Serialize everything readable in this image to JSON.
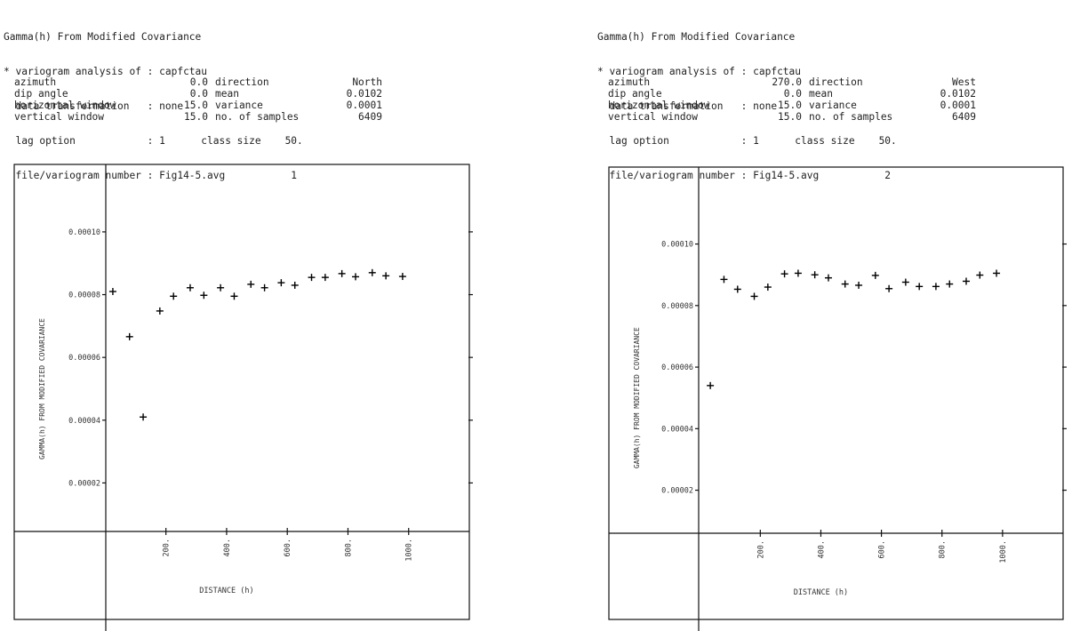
{
  "panels": [
    {
      "header": {
        "title": "Gamma(h) From Modified Covariance",
        "line2": "* variogram analysis of : capfctau",
        "line3": "  data transformation   : none",
        "line4": "  lag option            : 1      class size    50.",
        "line5": "  file/variogram number : Fig14-5.avg           1"
      },
      "params": [
        {
          "k1": "azimuth",
          "v1": "0.0",
          "k2": "direction",
          "v2": "North"
        },
        {
          "k1": "dip angle",
          "v1": "0.0",
          "k2": "mean",
          "v2": "0.0102"
        },
        {
          "k1": "horizontal window",
          "v1": "15.0",
          "k2": "variance",
          "v2": "0.0001"
        },
        {
          "k1": "vertical window",
          "v1": "15.0",
          "k2": "no. of samples",
          "v2": "6409"
        }
      ]
    },
    {
      "header": {
        "title": "Gamma(h) From Modified Covariance",
        "line2": "* variogram analysis of : capfctau",
        "line3": "  data transformation   : none",
        "line4": "  lag option            : 1      class size    50.",
        "line5": "  file/variogram number : Fig14-5.avg           2"
      },
      "params": [
        {
          "k1": "azimuth",
          "v1": "270.0",
          "k2": "direction",
          "v2": "West"
        },
        {
          "k1": "dip angle",
          "v1": "0.0",
          "k2": "mean",
          "v2": "0.0102"
        },
        {
          "k1": "horizontal window",
          "v1": "15.0",
          "k2": "variance",
          "v2": "0.0001"
        },
        {
          "k1": "vertical window",
          "v1": "15.0",
          "k2": "no. of samples",
          "v2": "6409"
        }
      ]
    }
  ],
  "chart_data": [
    {
      "type": "scatter",
      "marker": "+",
      "title": "",
      "xlabel": "DISTANCE (h)",
      "ylabel": "GAMMA(h) FROM MODIFIED COVARIANCE",
      "x_ticks": [
        "200.",
        "400.",
        "600.",
        "800.",
        "1000."
      ],
      "y_ticks": [
        "0.00002",
        "0.00004",
        "0.00006",
        "0.00008",
        "0.00010"
      ],
      "x_tick_values": [
        200,
        400,
        600,
        800,
        1000
      ],
      "y_tick_values": [
        2e-05,
        4e-05,
        6e-05,
        8e-05,
        0.0001
      ],
      "xlim": [
        -300,
        1200
      ],
      "ylim": [
        -2.35e-05,
        0.0001215
      ],
      "grid": false,
      "x": [
        25,
        80,
        125,
        180,
        225,
        280,
        325,
        380,
        425,
        480,
        525,
        580,
        625,
        680,
        725,
        780,
        825,
        880,
        925,
        980
      ],
      "y": [
        8.1e-05,
        6.66e-05,
        4.1e-05,
        7.48e-05,
        7.95e-05,
        8.22e-05,
        7.98e-05,
        8.22e-05,
        7.95e-05,
        8.33e-05,
        8.22e-05,
        8.38e-05,
        8.3e-05,
        8.55e-05,
        8.55e-05,
        8.67e-05,
        8.57e-05,
        8.7e-05,
        8.6e-05,
        8.58e-05
      ]
    },
    {
      "type": "scatter",
      "marker": "+",
      "title": "",
      "xlabel": "DISTANCE (h)",
      "ylabel": "GAMMA(h) FROM MODIFIED COVARIANCE",
      "x_ticks": [
        "200.",
        "400.",
        "600.",
        "800.",
        "1000."
      ],
      "y_ticks": [
        "0.00002",
        "0.00004",
        "0.00006",
        "0.00008",
        "0.00010"
      ],
      "x_tick_values": [
        200,
        400,
        600,
        800,
        1000
      ],
      "y_tick_values": [
        2e-05,
        4e-05,
        6e-05,
        8e-05,
        0.0001
      ],
      "xlim": [
        -300,
        1200
      ],
      "ylim": [
        -2.2e-05,
        0.000125
      ],
      "grid": false,
      "x": [
        35,
        80,
        125,
        180,
        225,
        280,
        325,
        380,
        425,
        480,
        525,
        580,
        625,
        680,
        725,
        780,
        825,
        880,
        925,
        980
      ],
      "y": [
        5.4e-05,
        8.85e-05,
        8.53e-05,
        8.3e-05,
        8.6e-05,
        9.03e-05,
        9.05e-05,
        9e-05,
        8.9e-05,
        8.7e-05,
        8.66e-05,
        8.98e-05,
        8.55e-05,
        8.76e-05,
        8.62e-05,
        8.62e-05,
        8.7e-05,
        8.79e-05,
        8.99e-05,
        9.05e-05
      ]
    }
  ]
}
